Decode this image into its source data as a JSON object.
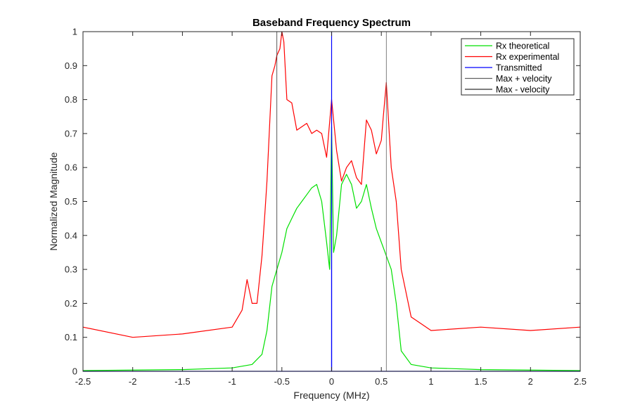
{
  "chart_data": {
    "type": "line",
    "title": "Baseband Frequency Spectrum",
    "xlabel": "Frequency (MHz)",
    "ylabel": "Normalized Magnitude",
    "xlim": [
      -2.5,
      2.5
    ],
    "ylim": [
      0,
      1
    ],
    "xticks": [
      "-2.5",
      "-2",
      "-1.5",
      "-1",
      "-0.5",
      "0",
      "0.5",
      "1",
      "1.5",
      "2",
      "2.5"
    ],
    "yticks": [
      "0",
      "0.1",
      "0.2",
      "0.3",
      "0.4",
      "0.5",
      "0.6",
      "0.7",
      "0.8",
      "0.9",
      "1"
    ],
    "grid": false,
    "legend_position": "top-right",
    "series": [
      {
        "name": "Rx theoretical",
        "color": "#00e000",
        "x": [
          -2.5,
          -1.5,
          -1.0,
          -0.8,
          -0.7,
          -0.65,
          -0.6,
          -0.55,
          -0.5,
          -0.45,
          -0.4,
          -0.35,
          -0.3,
          -0.25,
          -0.2,
          -0.15,
          -0.1,
          -0.05,
          -0.02,
          0.0,
          0.02,
          0.05,
          0.1,
          0.15,
          0.2,
          0.25,
          0.3,
          0.35,
          0.4,
          0.45,
          0.5,
          0.55,
          0.6,
          0.65,
          0.7,
          0.8,
          1.0,
          1.5,
          2.5
        ],
        "y": [
          0.002,
          0.005,
          0.01,
          0.02,
          0.05,
          0.12,
          0.25,
          0.3,
          0.35,
          0.42,
          0.45,
          0.48,
          0.5,
          0.52,
          0.54,
          0.55,
          0.5,
          0.38,
          0.3,
          0.72,
          0.35,
          0.4,
          0.55,
          0.58,
          0.55,
          0.48,
          0.5,
          0.55,
          0.48,
          0.42,
          0.38,
          0.34,
          0.3,
          0.2,
          0.06,
          0.02,
          0.01,
          0.005,
          0.002
        ]
      },
      {
        "name": "Rx experimental",
        "color": "#ff0000",
        "x": [
          -2.5,
          -2.0,
          -1.5,
          -1.0,
          -0.9,
          -0.85,
          -0.8,
          -0.75,
          -0.7,
          -0.67,
          -0.65,
          -0.6,
          -0.57,
          -0.55,
          -0.52,
          -0.5,
          -0.48,
          -0.45,
          -0.4,
          -0.35,
          -0.3,
          -0.25,
          -0.2,
          -0.15,
          -0.1,
          -0.05,
          0.0,
          0.05,
          0.1,
          0.15,
          0.2,
          0.25,
          0.3,
          0.35,
          0.4,
          0.45,
          0.5,
          0.52,
          0.55,
          0.6,
          0.65,
          0.7,
          0.8,
          0.9,
          1.0,
          1.5,
          2.0,
          2.5
        ],
        "y": [
          0.13,
          0.1,
          0.11,
          0.13,
          0.18,
          0.27,
          0.2,
          0.2,
          0.34,
          0.47,
          0.56,
          0.87,
          0.9,
          0.93,
          0.95,
          1.0,
          0.97,
          0.8,
          0.79,
          0.71,
          0.72,
          0.73,
          0.7,
          0.71,
          0.7,
          0.63,
          0.8,
          0.65,
          0.56,
          0.6,
          0.62,
          0.57,
          0.55,
          0.74,
          0.71,
          0.64,
          0.68,
          0.75,
          0.85,
          0.6,
          0.5,
          0.3,
          0.16,
          0.14,
          0.12,
          0.13,
          0.12,
          0.13
        ]
      },
      {
        "name": "Transmitted",
        "color": "#0000ff",
        "x": [
          -2.5,
          -0.001,
          0.0,
          0.001,
          2.5
        ],
        "y": [
          0,
          0,
          1,
          0,
          0
        ]
      },
      {
        "name": "Max + velocity",
        "color": "#606060",
        "x": [
          0.55,
          0.55
        ],
        "y": [
          0,
          1
        ]
      },
      {
        "name": "Max - velocity",
        "color": "#303030",
        "x": [
          -0.55,
          -0.55
        ],
        "y": [
          0,
          1
        ]
      }
    ]
  }
}
